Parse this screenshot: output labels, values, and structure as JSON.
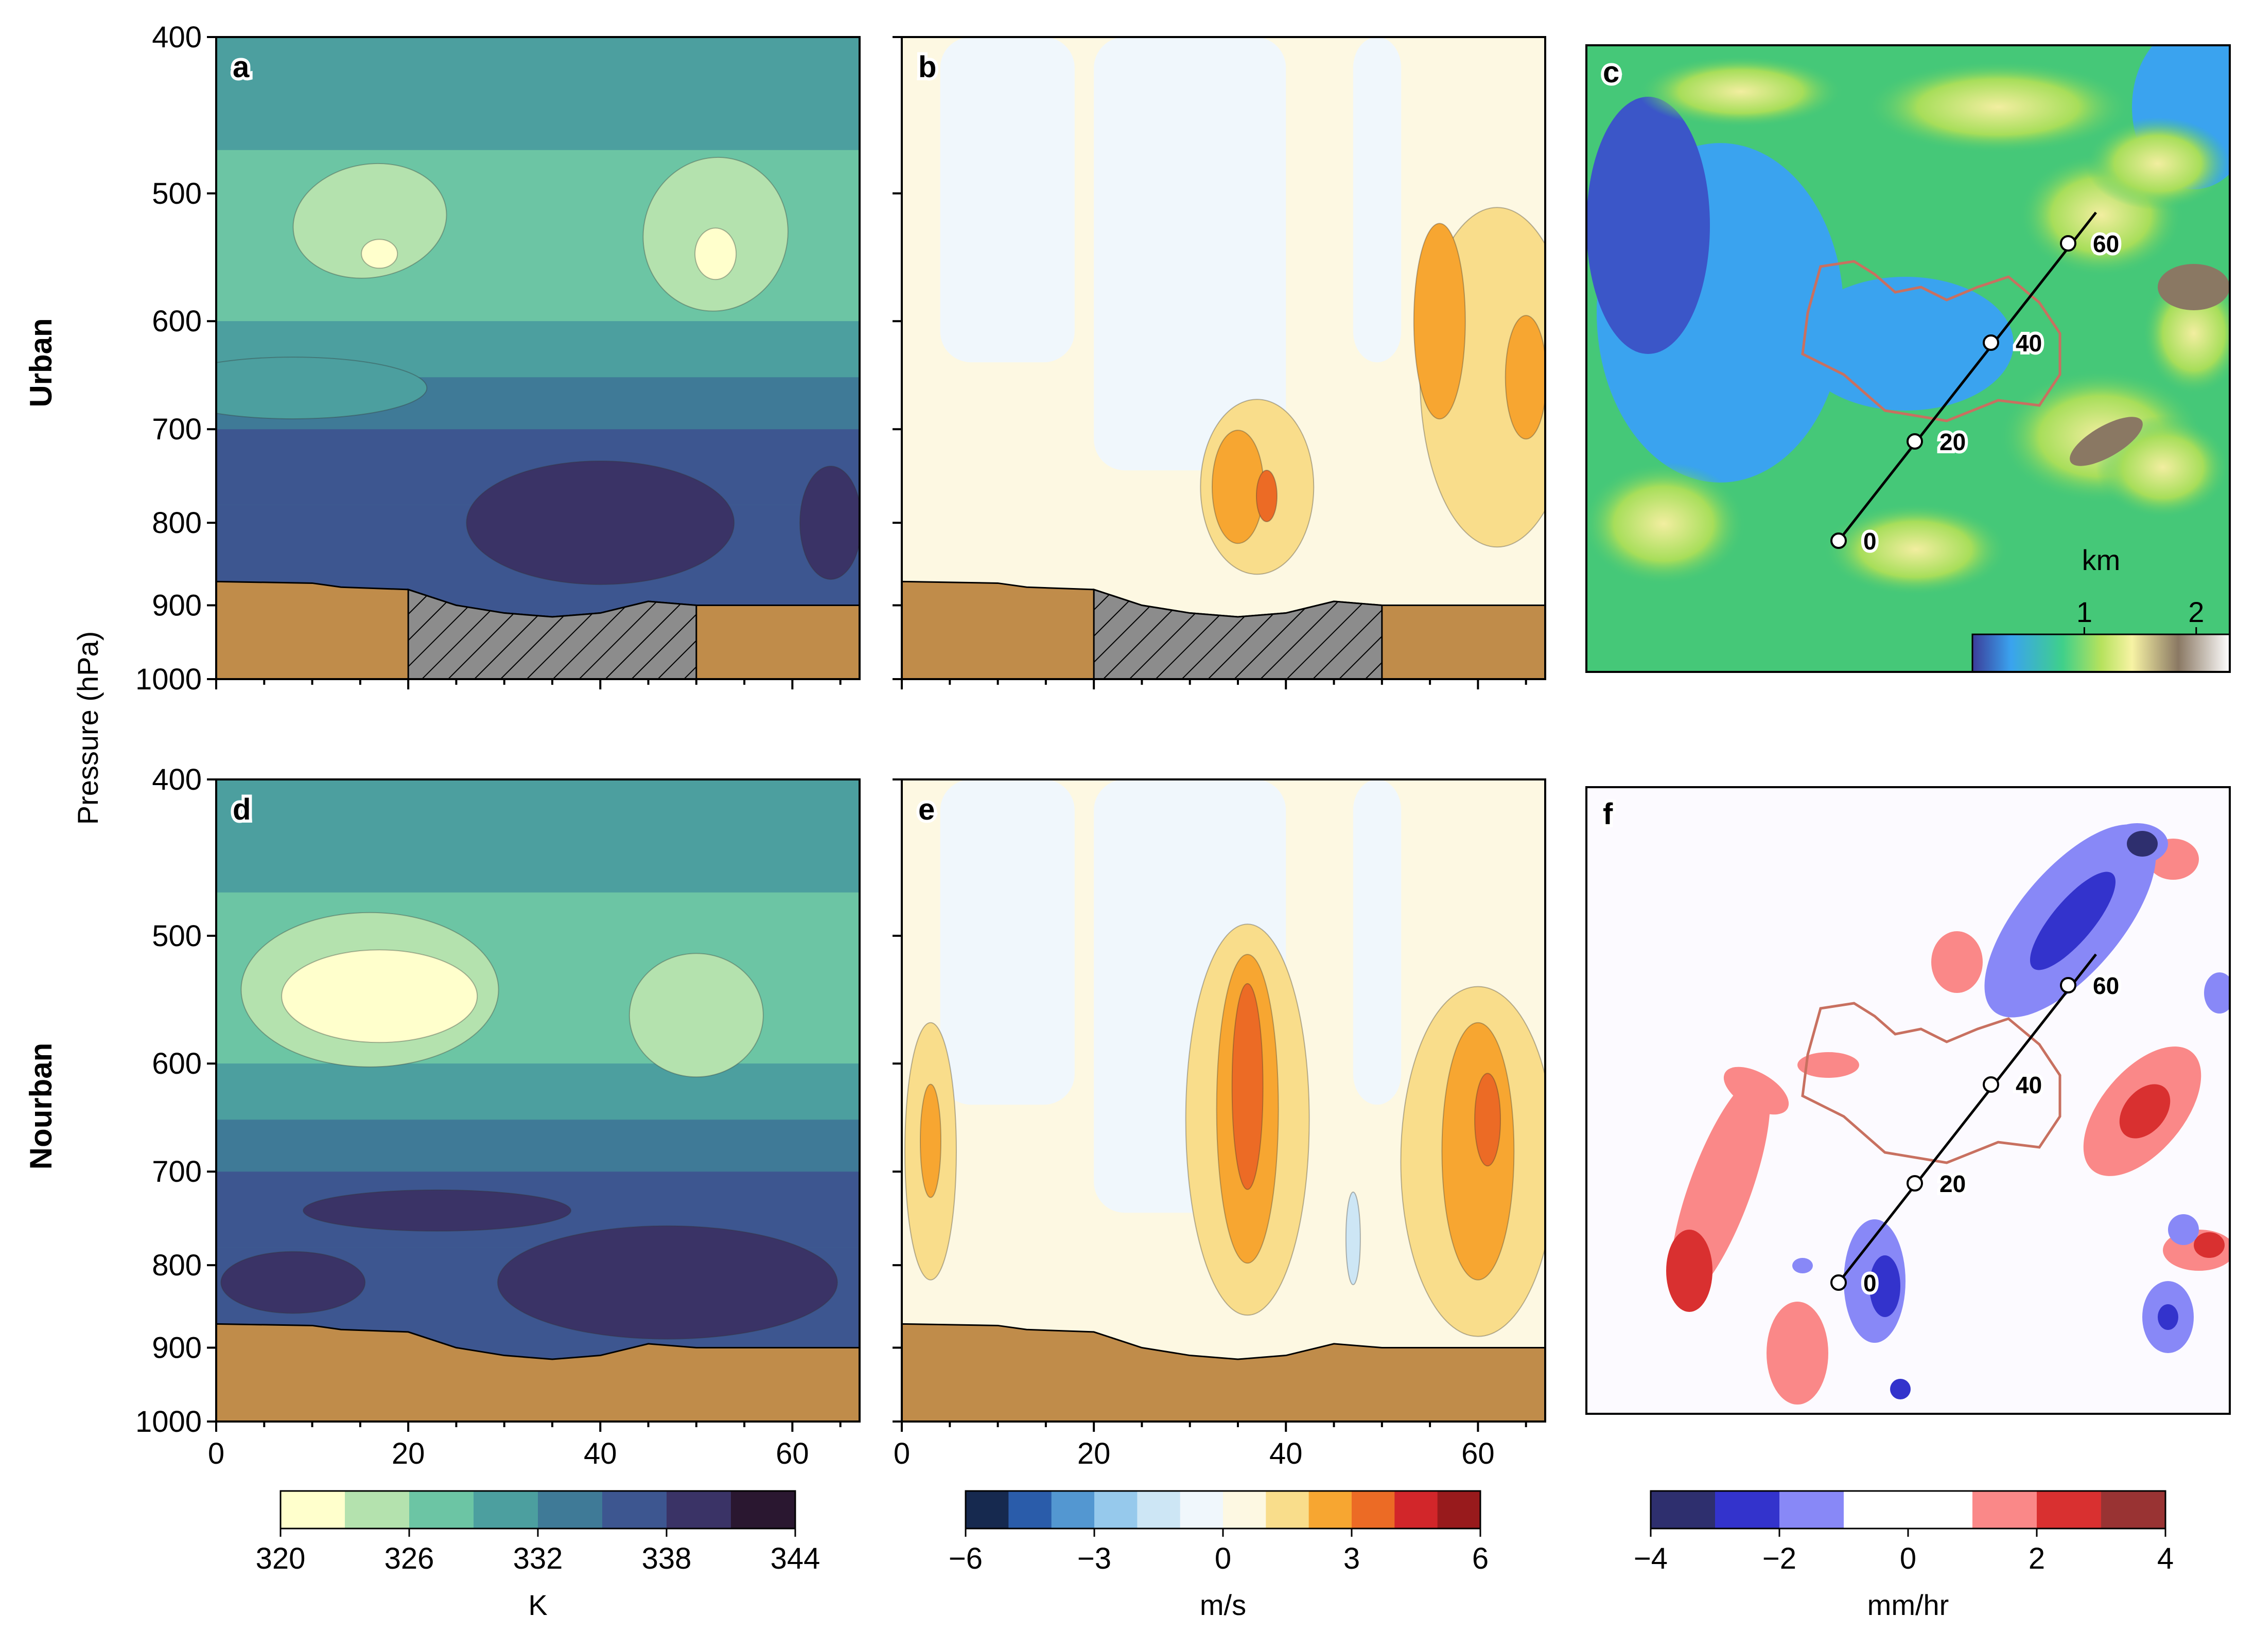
{
  "figure": {
    "row_labels": [
      "Urban",
      "Nourban"
    ],
    "shared_ylabel": "Pressure (hPa)",
    "colors": {
      "terrain_fill": "#c08c4a",
      "hatch_fill": "#8c8c8c",
      "urban_contour": "#c87060"
    }
  },
  "chart_data": [
    {
      "panel": "a",
      "type": "heatmap",
      "variable": "potential temperature cross-section",
      "x_ticks": [
        "0",
        "20",
        "40",
        "60"
      ],
      "xlim": [
        0,
        67
      ],
      "y_ticks": [
        "400",
        "500",
        "600",
        "700",
        "800",
        "900",
        "1000"
      ],
      "ylim": [
        1000,
        400
      ],
      "y_scale": "log-pressure",
      "levels": [
        320,
        323,
        326,
        329,
        332,
        335,
        338,
        341,
        344
      ],
      "colors": [
        "#ffffcc",
        "#b4e2ae",
        "#6cc5a4",
        "#4c9f9f",
        "#3f7a97",
        "#3d5690",
        "#3a3366",
        "#2a1730"
      ],
      "surface": [
        [
          0,
          870
        ],
        [
          10,
          872
        ],
        [
          13,
          877
        ],
        [
          20,
          880
        ],
        [
          25,
          900
        ],
        [
          30,
          910
        ],
        [
          35,
          915
        ],
        [
          40,
          910
        ],
        [
          45,
          895
        ],
        [
          50,
          900
        ],
        [
          60,
          900
        ],
        [
          67,
          900
        ]
      ],
      "hatched_region": [
        20,
        50
      ]
    },
    {
      "panel": "b",
      "type": "heatmap",
      "variable": "vertical velocity cross-section",
      "x_ticks": [
        "0",
        "20",
        "40",
        "60"
      ],
      "xlim": [
        0,
        67
      ],
      "ylim": [
        1000,
        400
      ],
      "levels": [
        -6,
        -5,
        -4,
        -3,
        -2,
        -1,
        0,
        1,
        2,
        3,
        4,
        5,
        6
      ],
      "surface": [
        [
          0,
          870
        ],
        [
          10,
          872
        ],
        [
          13,
          877
        ],
        [
          20,
          880
        ],
        [
          25,
          900
        ],
        [
          30,
          910
        ],
        [
          35,
          915
        ],
        [
          40,
          910
        ],
        [
          45,
          895
        ],
        [
          50,
          900
        ],
        [
          60,
          900
        ],
        [
          67,
          900
        ]
      ],
      "hatched_region": [
        20,
        50
      ]
    },
    {
      "panel": "c",
      "type": "heatmap",
      "variable": "terrain height",
      "colorbar": {
        "unit": "km",
        "ticks": [
          "1",
          "2"
        ],
        "range": [
          0,
          2.3
        ]
      },
      "transect_labels": [
        "0",
        "20",
        "40",
        "60"
      ]
    },
    {
      "panel": "d",
      "type": "heatmap",
      "variable": "potential temperature cross-section",
      "x_ticks": [
        "0",
        "20",
        "40",
        "60"
      ],
      "xlim": [
        0,
        67
      ],
      "y_ticks": [
        "400",
        "500",
        "600",
        "700",
        "800",
        "900",
        "1000"
      ],
      "ylim": [
        1000,
        400
      ],
      "surface": [
        [
          0,
          870
        ],
        [
          10,
          872
        ],
        [
          13,
          877
        ],
        [
          20,
          880
        ],
        [
          25,
          900
        ],
        [
          30,
          910
        ],
        [
          35,
          915
        ],
        [
          40,
          910
        ],
        [
          45,
          895
        ],
        [
          50,
          900
        ],
        [
          60,
          900
        ],
        [
          67,
          900
        ]
      ]
    },
    {
      "panel": "e",
      "type": "heatmap",
      "variable": "vertical velocity cross-section",
      "x_ticks": [
        "0",
        "20",
        "40",
        "60"
      ],
      "xlim": [
        0,
        67
      ],
      "ylim": [
        1000,
        400
      ],
      "surface": [
        [
          0,
          870
        ],
        [
          10,
          872
        ],
        [
          13,
          877
        ],
        [
          20,
          880
        ],
        [
          25,
          900
        ],
        [
          30,
          910
        ],
        [
          35,
          915
        ],
        [
          40,
          910
        ],
        [
          45,
          895
        ],
        [
          50,
          900
        ],
        [
          60,
          900
        ],
        [
          67,
          900
        ]
      ]
    },
    {
      "panel": "f",
      "type": "heatmap",
      "variable": "precipitation rate difference",
      "transect_labels": [
        "0",
        "20",
        "40",
        "60"
      ]
    }
  ],
  "colorbars": [
    {
      "unit": "K",
      "ticks": [
        "320",
        "326",
        "332",
        "338",
        "344"
      ],
      "range": [
        320,
        344
      ],
      "colors": [
        "#ffffcc",
        "#b4e2ae",
        "#6cc5a4",
        "#4c9f9f",
        "#3f7a97",
        "#3d5690",
        "#3a3366",
        "#2a1730"
      ]
    },
    {
      "unit": "m/s",
      "ticks": [
        "−6",
        "−3",
        "0",
        "3",
        "6"
      ],
      "range": [
        -6,
        6
      ],
      "colors": [
        "#16294f",
        "#2a5caa",
        "#5397d1",
        "#96c9ec",
        "#cde6f5",
        "#f0f7fc",
        "#fdf8e2",
        "#f9dd8b",
        "#f7a631",
        "#ec6b25",
        "#d2262a",
        "#981a1c"
      ]
    },
    {
      "unit": "mm/hr",
      "ticks": [
        "−4",
        "−2",
        "0",
        "2",
        "4"
      ],
      "range": [
        -4,
        4
      ],
      "colors": [
        "#2e2f6e",
        "#3333cc",
        "#8888f7",
        "#ffffff",
        "#ffffff",
        "#fa8888",
        "#d93030",
        "#993333"
      ]
    }
  ]
}
